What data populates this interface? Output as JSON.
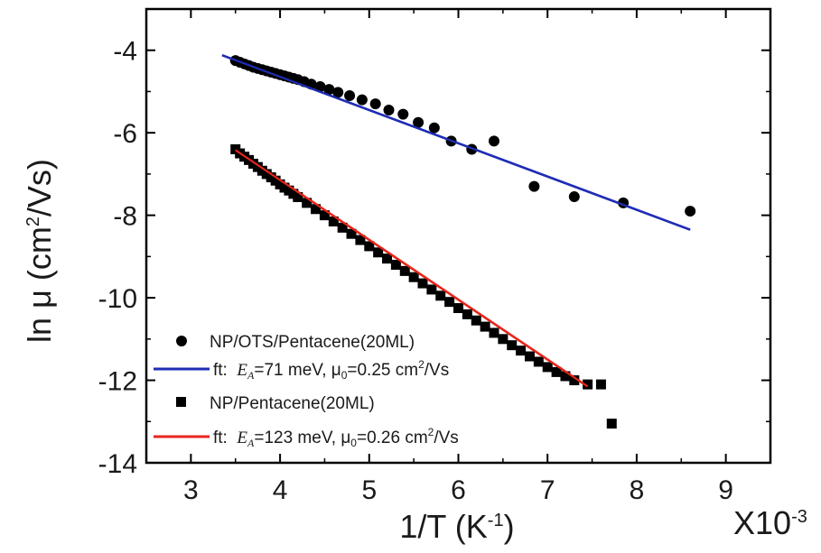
{
  "chart_data": {
    "type": "scatter",
    "xlabel": "1/T (K",
    "xlabel_sup": "-1",
    "xlabel_close": ")",
    "x_multiplier": "X10",
    "x_multiplier_exp": "-3",
    "ylabel": "ln μ (cm",
    "ylabel_sup": "2",
    "ylabel_close": "/Vs)",
    "xlim": [
      2.5,
      9.5
    ],
    "ylim": [
      -14,
      -3
    ],
    "x_ticks": [
      3,
      4,
      5,
      6,
      7,
      8,
      9
    ],
    "x_tick_labels": [
      "3",
      "4",
      "5",
      "6",
      "7",
      "8",
      "9"
    ],
    "y_ticks": [
      -4,
      -6,
      -8,
      -10,
      -12,
      -14
    ],
    "y_tick_labels": [
      "-4",
      "-6",
      "-8",
      "-10",
      "-12",
      "-14"
    ],
    "grid": false,
    "legend_position": "bottom-left",
    "series": [
      {
        "name": "NP/OTS/Pentacene(20ML)",
        "marker": "circle",
        "color": "#000000",
        "x": [
          3.5,
          3.55,
          3.6,
          3.65,
          3.7,
          3.75,
          3.8,
          3.85,
          3.9,
          3.95,
          4.0,
          4.05,
          4.1,
          4.15,
          4.2,
          4.27,
          4.35,
          4.45,
          4.55,
          4.65,
          4.78,
          4.92,
          5.07,
          5.22,
          5.38,
          5.55,
          5.73,
          5.92,
          6.15,
          6.4,
          6.85,
          7.3,
          7.85,
          8.6
        ],
        "y": [
          -4.25,
          -4.29,
          -4.33,
          -4.37,
          -4.41,
          -4.44,
          -4.47,
          -4.5,
          -4.53,
          -4.56,
          -4.59,
          -4.62,
          -4.65,
          -4.68,
          -4.71,
          -4.76,
          -4.82,
          -4.88,
          -4.95,
          -5.02,
          -5.1,
          -5.2,
          -5.3,
          -5.45,
          -5.55,
          -5.75,
          -5.88,
          -6.2,
          -6.4,
          -6.2,
          -7.3,
          -7.55,
          -7.7,
          -7.9
        ]
      },
      {
        "name": "NP/Pentacene(20ML)",
        "marker": "square",
        "color": "#000000",
        "x": [
          3.5,
          3.55,
          3.6,
          3.65,
          3.7,
          3.75,
          3.8,
          3.85,
          3.9,
          3.95,
          4.0,
          4.05,
          4.1,
          4.15,
          4.2,
          4.3,
          4.4,
          4.5,
          4.6,
          4.7,
          4.8,
          4.9,
          5.0,
          5.1,
          5.2,
          5.3,
          5.4,
          5.5,
          5.6,
          5.7,
          5.8,
          5.9,
          6.0,
          6.1,
          6.2,
          6.3,
          6.4,
          6.5,
          6.6,
          6.7,
          6.8,
          6.9,
          7.0,
          7.1,
          7.2,
          7.3,
          7.45,
          7.6,
          7.72
        ],
        "y": [
          -6.4,
          -6.5,
          -6.58,
          -6.66,
          -6.75,
          -6.83,
          -6.92,
          -7.0,
          -7.08,
          -7.16,
          -7.25,
          -7.33,
          -7.4,
          -7.48,
          -7.56,
          -7.7,
          -7.85,
          -8.0,
          -8.15,
          -8.3,
          -8.45,
          -8.6,
          -8.75,
          -8.9,
          -9.05,
          -9.2,
          -9.35,
          -9.5,
          -9.65,
          -9.8,
          -9.95,
          -10.1,
          -10.25,
          -10.4,
          -10.55,
          -10.7,
          -10.85,
          -11.0,
          -11.15,
          -11.28,
          -11.42,
          -11.55,
          -11.68,
          -11.8,
          -11.9,
          -12.0,
          -12.1,
          -12.1,
          -13.05
        ]
      }
    ],
    "fits": [
      {
        "prefix": "ft:  ",
        "ea_symbol": "E",
        "ea_sub": "A",
        "ea_value": "=71 meV, ",
        "mu_symbol": "μ",
        "mu_sub": "0",
        "mu_value": "=0.25 cm",
        "unit_sup": "2",
        "unit_tail": "/Vs",
        "color": "#1f2db5",
        "x": [
          3.35,
          8.6
        ],
        "y": [
          -4.12,
          -8.35
        ]
      },
      {
        "prefix": "ft:  ",
        "ea_symbol": "E",
        "ea_sub": "A",
        "ea_value": "=123 meV, ",
        "mu_symbol": "μ",
        "mu_sub": "0",
        "mu_value": "=0.26 cm",
        "unit_sup": "2",
        "unit_tail": "/Vs",
        "color": "#e8261c",
        "x": [
          3.5,
          7.45
        ],
        "y": [
          -6.42,
          -12.15
        ]
      }
    ]
  }
}
